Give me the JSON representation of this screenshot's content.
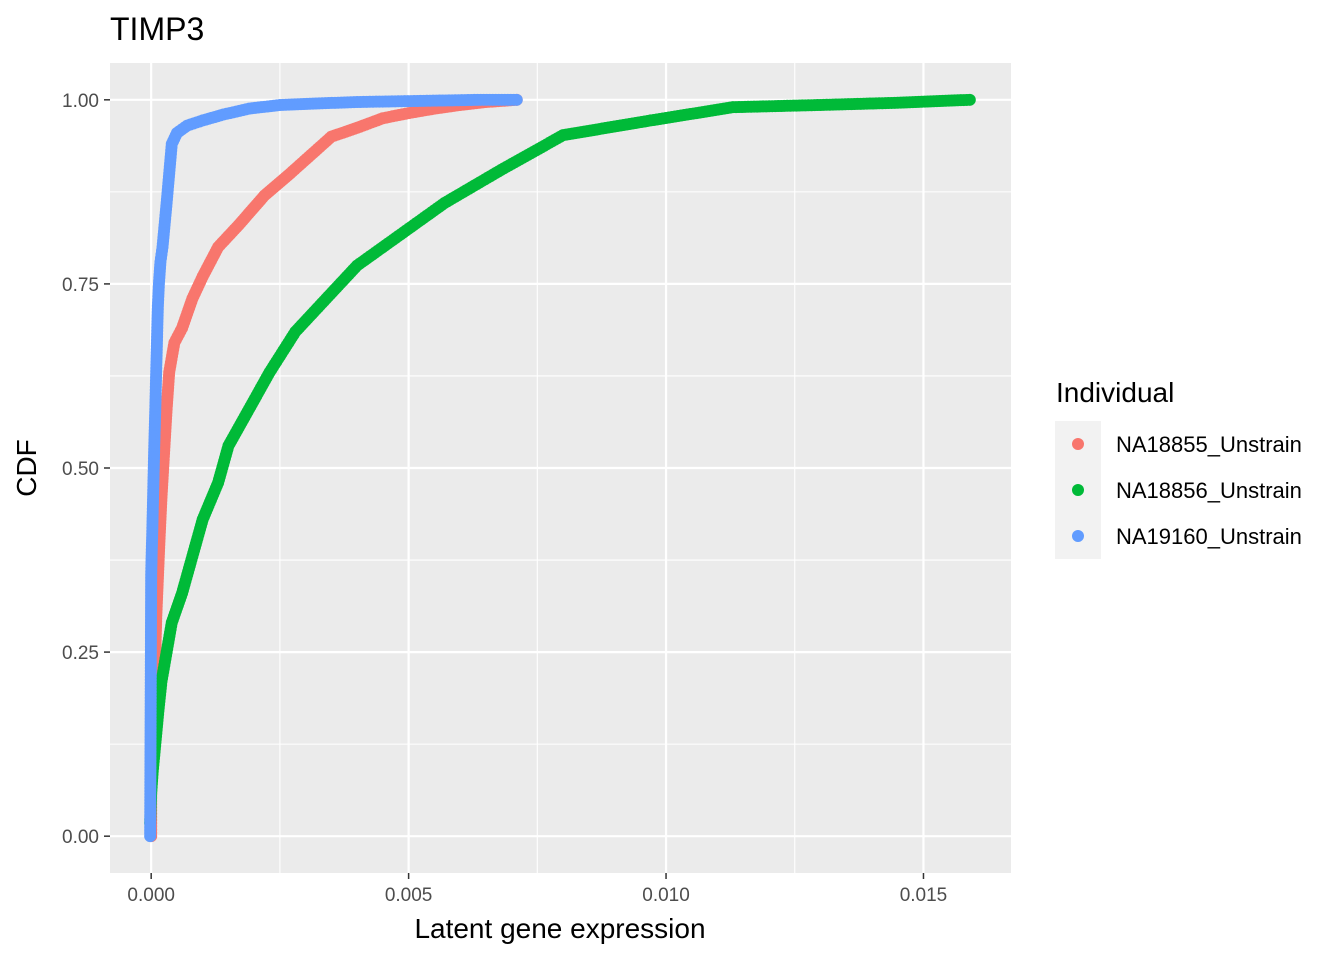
{
  "chart_data": {
    "type": "scatter",
    "title": "TIMP3",
    "xlabel": "Latent gene expression",
    "ylabel": "CDF",
    "xlim": [
      -0.0008,
      0.0167
    ],
    "ylim": [
      -0.05,
      1.05
    ],
    "x_ticks": [
      0.0,
      0.005,
      0.01,
      0.015
    ],
    "x_tick_labels": [
      "0.000",
      "0.005",
      "0.010",
      "0.015"
    ],
    "y_ticks": [
      0.0,
      0.25,
      0.5,
      0.75,
      1.0
    ],
    "y_tick_labels": [
      "0.00",
      "0.25",
      "0.50",
      "0.75",
      "1.00"
    ],
    "grid": true,
    "background": "#ebebeb",
    "legend": {
      "title": "Individual",
      "position": "right"
    },
    "series": [
      {
        "name": "NA18855_Unstrain",
        "color": "#F8766D",
        "x": [
          0.0,
          0.0,
          0.0,
          3e-05,
          5e-05,
          8e-05,
          0.0001,
          0.00013,
          0.00016,
          0.0002,
          0.00025,
          0.0003,
          0.00035,
          0.00045,
          0.0006,
          0.0008,
          0.001,
          0.0013,
          0.0017,
          0.0022,
          0.0027,
          0.0031,
          0.0035,
          0.004,
          0.0045,
          0.005,
          0.0055,
          0.006,
          0.0065,
          0.0071
        ],
        "y": [
          0.0,
          0.035,
          0.14,
          0.19,
          0.21,
          0.25,
          0.3,
          0.35,
          0.4,
          0.46,
          0.52,
          0.58,
          0.63,
          0.67,
          0.69,
          0.73,
          0.76,
          0.8,
          0.83,
          0.87,
          0.9,
          0.925,
          0.95,
          0.962,
          0.975,
          0.982,
          0.988,
          0.993,
          0.997,
          1.0
        ]
      },
      {
        "name": "NA18856_Unstrain",
        "color": "#00BA38",
        "x": [
          -2e-05,
          0.0,
          3e-05,
          6e-05,
          0.0001,
          0.00014,
          0.0002,
          0.0003,
          0.0004,
          0.0006,
          0.0008,
          0.001,
          0.0013,
          0.0015,
          0.0019,
          0.0023,
          0.0028,
          0.0034,
          0.004,
          0.0048,
          0.0057,
          0.0068,
          0.008,
          0.0097,
          0.0113,
          0.013,
          0.0145,
          0.0159
        ],
        "y": [
          0.018,
          0.058,
          0.088,
          0.11,
          0.14,
          0.17,
          0.21,
          0.25,
          0.29,
          0.33,
          0.38,
          0.43,
          0.48,
          0.53,
          0.58,
          0.63,
          0.685,
          0.73,
          0.775,
          0.815,
          0.86,
          0.905,
          0.952,
          0.972,
          0.99,
          0.993,
          0.996,
          1.0
        ]
      },
      {
        "name": "NA19160_Unstrain",
        "color": "#619CFF",
        "x": [
          -2e-05,
          0.0,
          1e-05,
          2e-05,
          3e-05,
          4e-05,
          5e-05,
          6e-05,
          7e-05,
          8e-05,
          9e-05,
          0.0001,
          0.00011,
          0.00012,
          0.00013,
          0.00015,
          0.00018,
          0.00022,
          0.00026,
          0.0003,
          0.00035,
          0.0004,
          0.0005,
          0.0007,
          0.001,
          0.0014,
          0.0019,
          0.0025,
          0.0032,
          0.004,
          0.0048,
          0.0056,
          0.0064,
          0.0071
        ],
        "y": [
          0.0,
          0.355,
          0.385,
          0.41,
          0.44,
          0.47,
          0.5,
          0.53,
          0.555,
          0.58,
          0.61,
          0.64,
          0.665,
          0.695,
          0.72,
          0.75,
          0.78,
          0.8,
          0.83,
          0.86,
          0.9,
          0.94,
          0.955,
          0.965,
          0.972,
          0.98,
          0.988,
          0.993,
          0.995,
          0.997,
          0.998,
          0.999,
          1.0,
          1.0
        ]
      }
    ]
  }
}
